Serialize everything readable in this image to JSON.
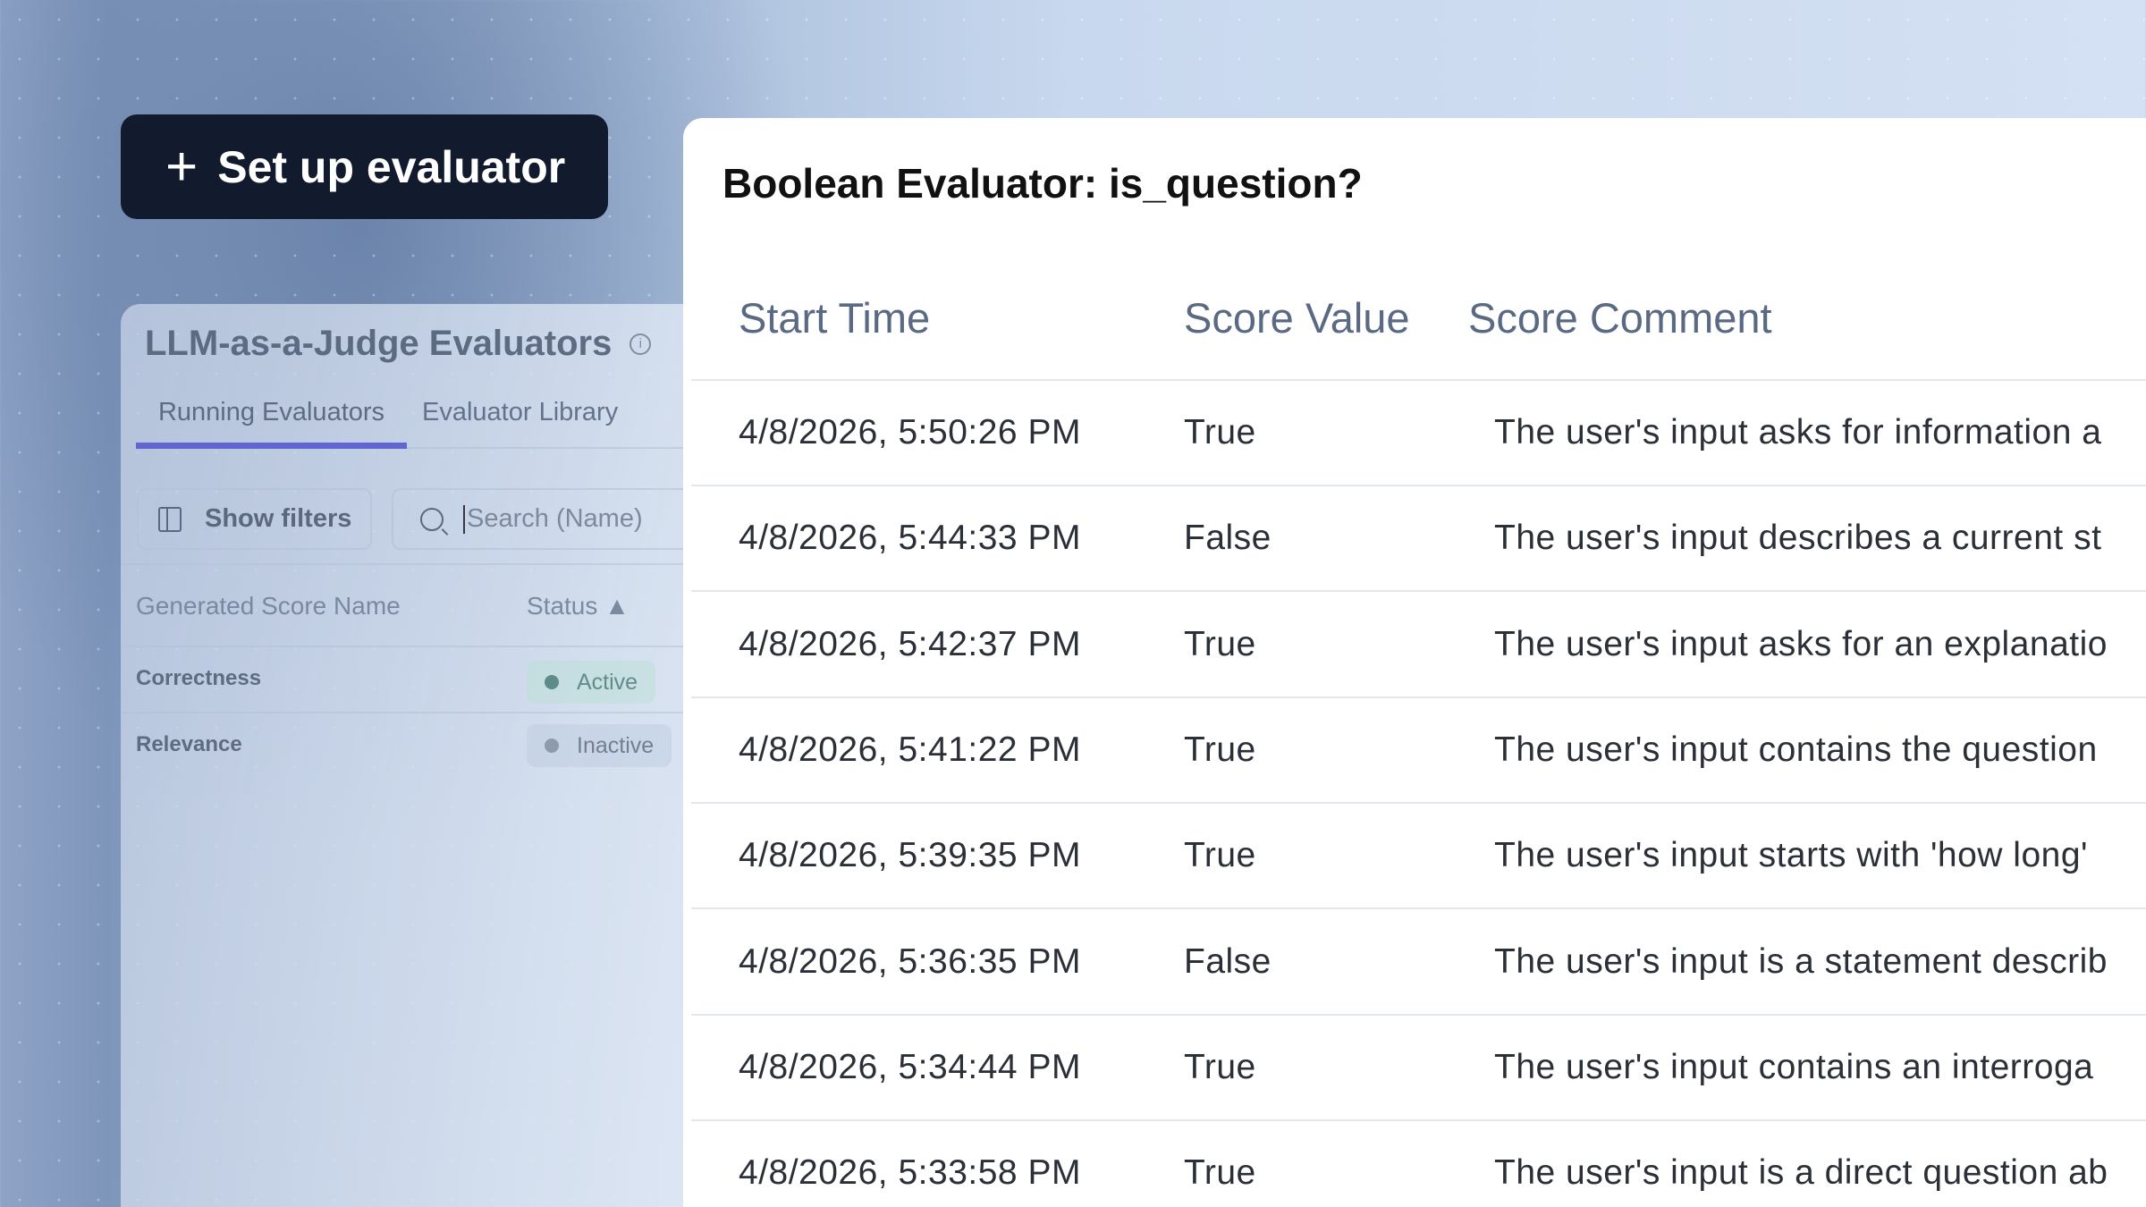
{
  "setup_button": {
    "label": "Set up evaluator",
    "icon": "plus-icon"
  },
  "left_panel": {
    "title": "LLM-as-a-Judge Evaluators",
    "info_icon": "i",
    "tabs": [
      {
        "label": "Running Evaluators",
        "active": true
      },
      {
        "label": "Evaluator Library",
        "active": false
      }
    ],
    "accent": "#5f63d3",
    "show_filters": "Show filters",
    "search_placeholder": "Search (Name)",
    "columns": [
      "Generated Score Name",
      "Status"
    ],
    "sort_icon": "▲",
    "rows": [
      {
        "name": "Correctness",
        "status": "Active",
        "status_color": "#5a8a87"
      },
      {
        "name": "Relevance",
        "status": "Inactive",
        "status_color": "#8e9aaa"
      }
    ]
  },
  "detail_panel": {
    "title": "Boolean Evaluator: is_question?",
    "columns": [
      "Start Time",
      "Score Value",
      "Score Comment"
    ],
    "rows": [
      {
        "time": "4/8/2026, 5:50:26 PM",
        "value": "True",
        "comment": "The user's input asks for information a"
      },
      {
        "time": "4/8/2026, 5:44:33 PM",
        "value": "False",
        "comment": "The user's input describes a current st"
      },
      {
        "time": "4/8/2026, 5:42:37 PM",
        "value": "True",
        "comment": "The user's input asks for an explanatio"
      },
      {
        "time": "4/8/2026, 5:41:22 PM",
        "value": "True",
        "comment": "The user's input contains the question"
      },
      {
        "time": "4/8/2026, 5:39:35 PM",
        "value": "True",
        "comment": "The user's input starts with 'how long'"
      },
      {
        "time": "4/8/2026, 5:36:35 PM",
        "value": "False",
        "comment": "The user's input is a statement describ"
      },
      {
        "time": "4/8/2026, 5:34:44 PM",
        "value": "True",
        "comment": "The user's input contains an interroga"
      },
      {
        "time": "4/8/2026, 5:33:58 PM",
        "value": "True",
        "comment": "The user's input is a direct question ab"
      }
    ]
  }
}
